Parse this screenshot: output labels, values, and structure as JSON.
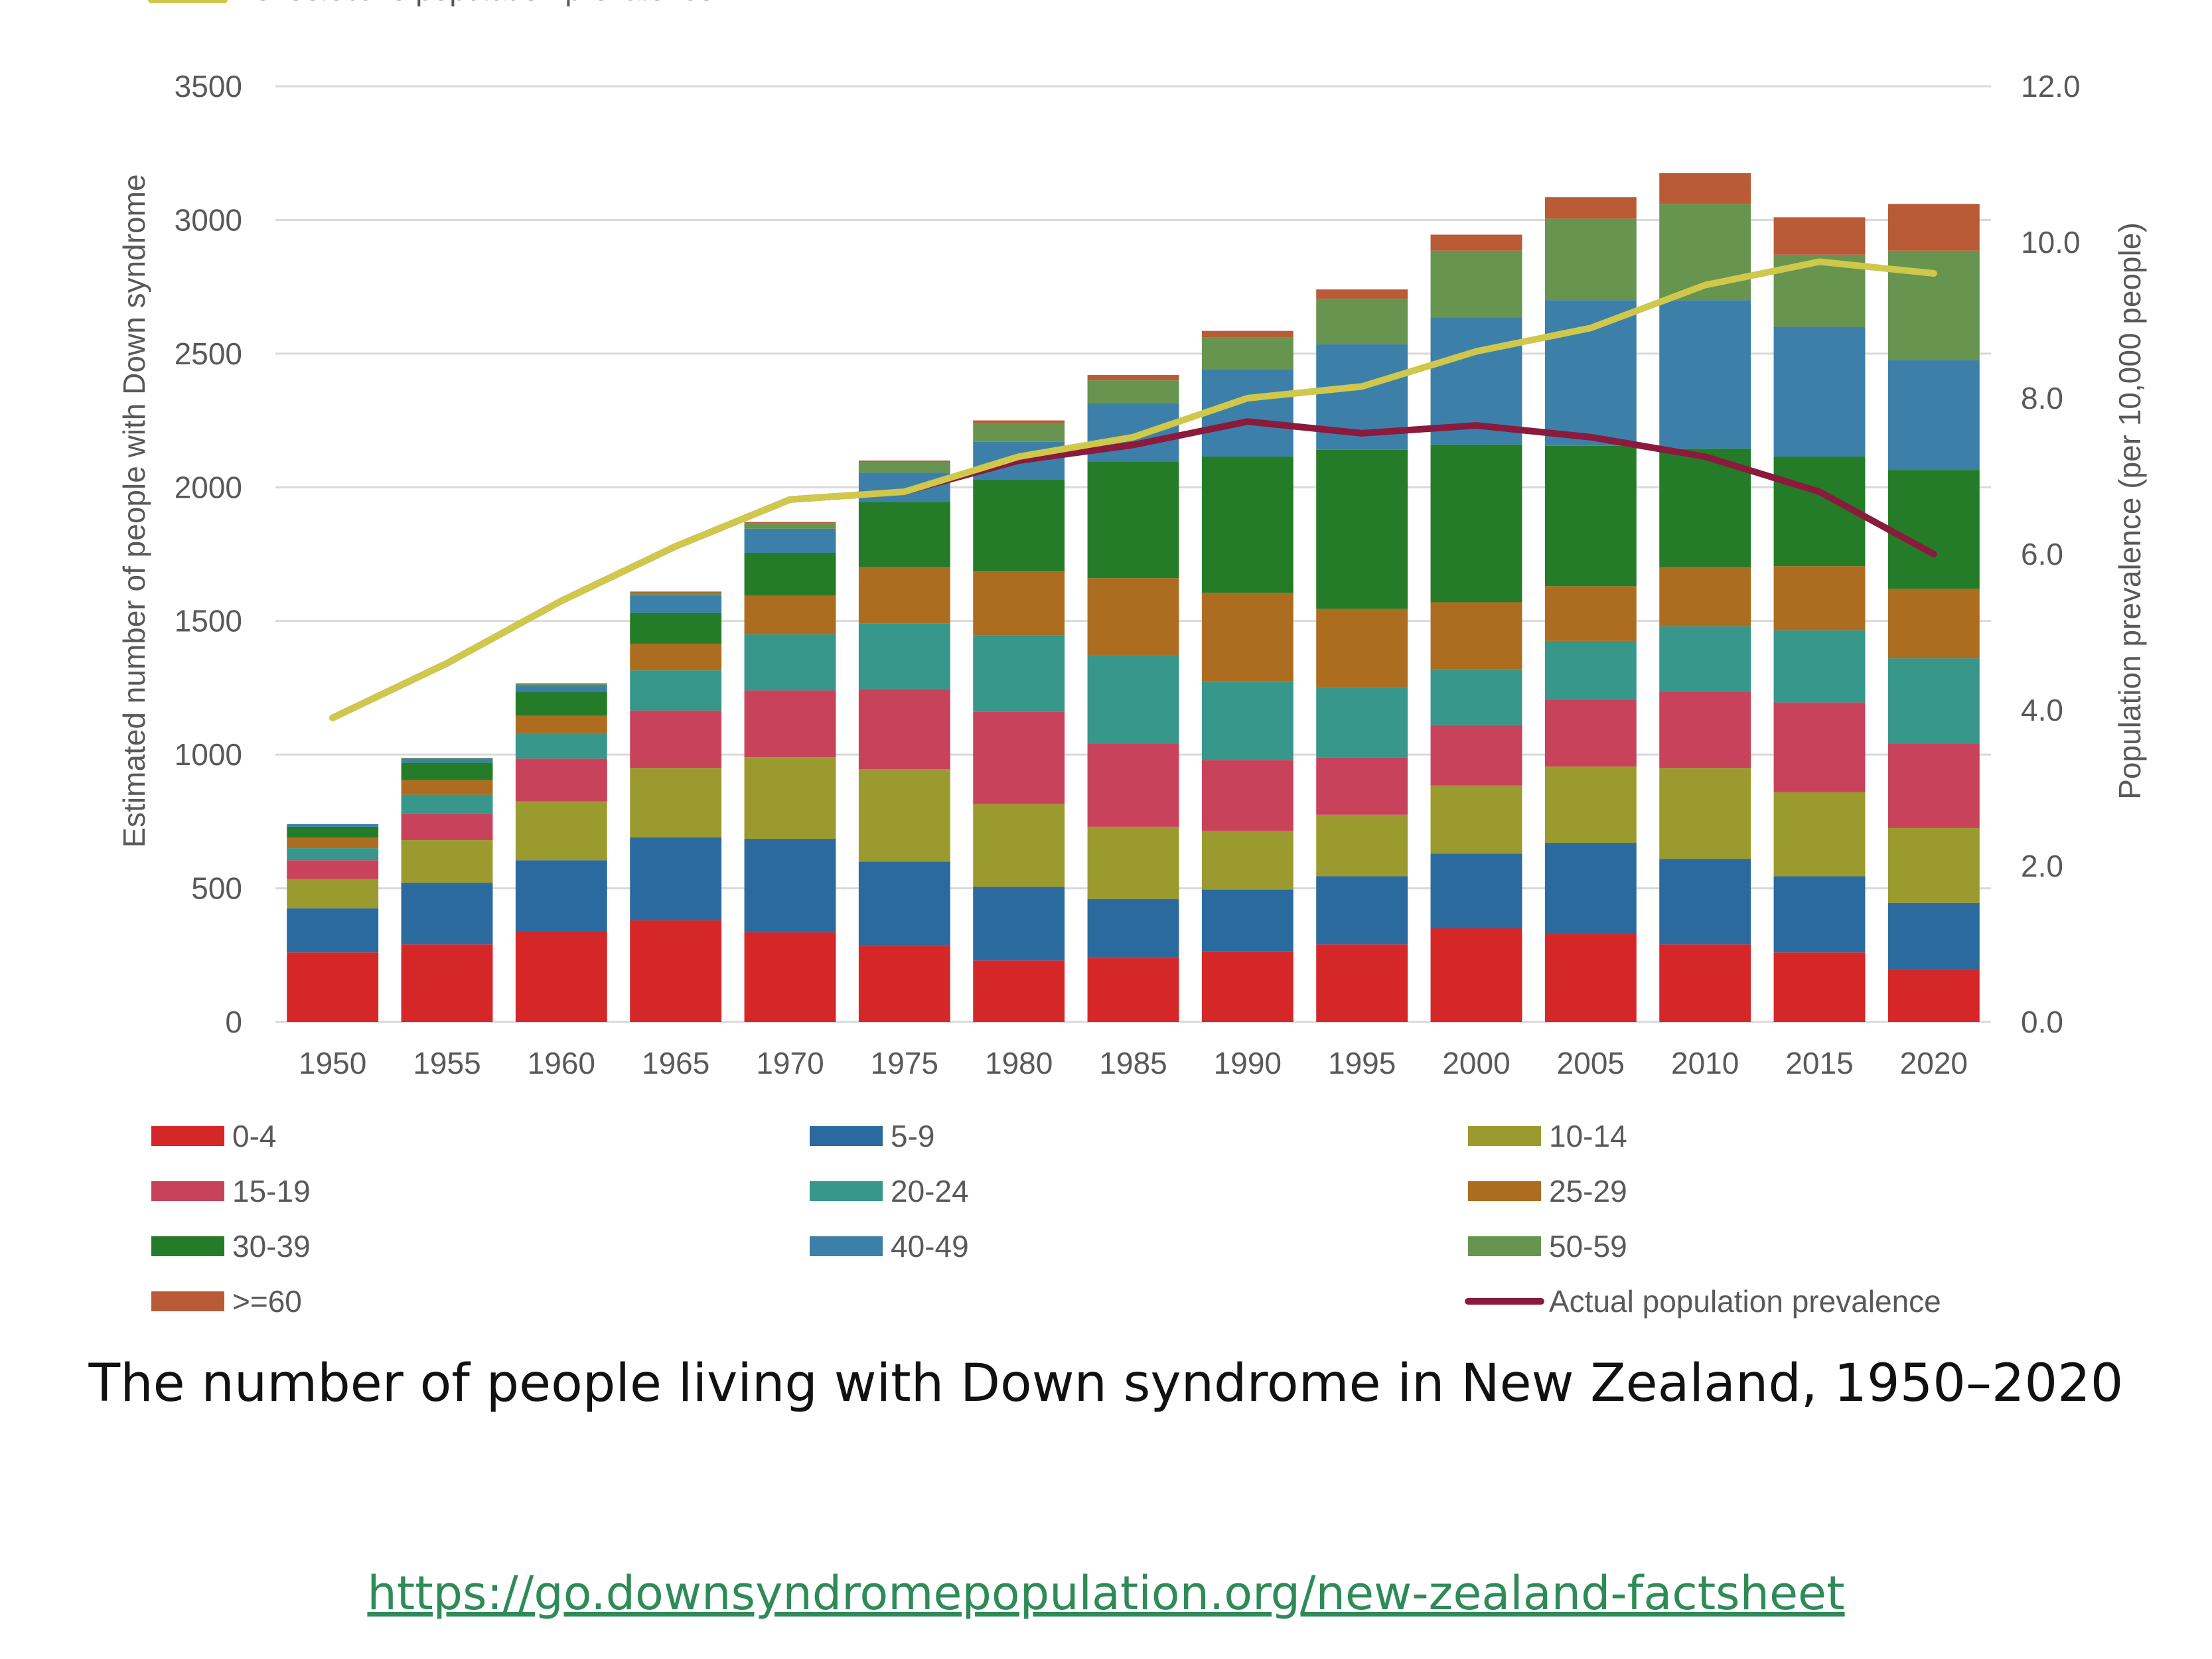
{
  "caption": "The number of people living with Down syndrome in New Zealand, 1950–2020",
  "link": "https://go.downsyndromepopulation.org/new-zealand-factsheet",
  "chart_data": {
    "type": "bar",
    "stacked": true,
    "title": "The number of people living with Down syndrome in New Zealand, 1950–2020",
    "categories": [
      "1950",
      "1955",
      "1960",
      "1965",
      "1970",
      "1975",
      "1980",
      "1985",
      "1990",
      "1995",
      "2000",
      "2005",
      "2010",
      "2015",
      "2020"
    ],
    "ylabel": "Estimated number of people with Down syndrome",
    "y2label": "Population prevalence (per 10,000 people)",
    "ylim": [
      0,
      3500
    ],
    "y2lim": [
      0,
      12
    ],
    "yticks": [
      "0",
      "500",
      "1000",
      "1500",
      "2000",
      "2500",
      "3000",
      "3500"
    ],
    "y2ticks": [
      "0.0",
      "2.0",
      "4.0",
      "6.0",
      "8.0",
      "10.0",
      "12.0"
    ],
    "grid": true,
    "legend_position": "bottom",
    "series": [
      {
        "name": "0-4",
        "color": "#d62728",
        "values": [
          260,
          290,
          340,
          380,
          335,
          285,
          230,
          240,
          265,
          290,
          350,
          330,
          290,
          260,
          195
        ]
      },
      {
        "name": "5-9",
        "color": "#2b6a9e",
        "values": [
          165,
          230,
          265,
          310,
          350,
          315,
          275,
          220,
          230,
          255,
          280,
          340,
          320,
          285,
          250
        ]
      },
      {
        "name": "10-14",
        "color": "#9a9a2e",
        "values": [
          110,
          160,
          220,
          260,
          305,
          345,
          310,
          270,
          220,
          230,
          255,
          285,
          340,
          315,
          280
        ]
      },
      {
        "name": "15-19",
        "color": "#c9425c",
        "values": [
          70,
          100,
          160,
          215,
          250,
          300,
          345,
          310,
          265,
          215,
          225,
          250,
          285,
          335,
          315
        ]
      },
      {
        "name": "20-24",
        "color": "#36978a",
        "values": [
          45,
          70,
          95,
          150,
          210,
          245,
          285,
          330,
          295,
          260,
          210,
          220,
          245,
          270,
          320
        ]
      },
      {
        "name": "25-29",
        "color": "#ad6d20",
        "values": [
          40,
          55,
          65,
          100,
          145,
          210,
          240,
          290,
          330,
          295,
          250,
          205,
          220,
          240,
          260
        ]
      },
      {
        "name": "30-39",
        "color": "#257c28",
        "values": [
          40,
          65,
          90,
          115,
          160,
          245,
          345,
          435,
          510,
          595,
          590,
          525,
          445,
          410,
          445
        ]
      },
      {
        "name": "40-49",
        "color": "#3c80aa",
        "values": [
          10,
          15,
          25,
          65,
          90,
          110,
          140,
          220,
          325,
          395,
          475,
          545,
          555,
          485,
          410
        ]
      },
      {
        "name": "50-59",
        "color": "#67944e",
        "values": [
          0,
          3,
          5,
          10,
          20,
          40,
          70,
          85,
          120,
          170,
          250,
          305,
          360,
          270,
          410
        ]
      },
      {
        "name": ">=60",
        "color": "#b85b36",
        "values": [
          0,
          0,
          2,
          5,
          5,
          5,
          10,
          20,
          25,
          35,
          60,
          80,
          115,
          140,
          175
        ]
      }
    ],
    "line_series": [
      {
        "name": "Actual population prevalence",
        "color": "#8b1a3c",
        "axis": "right",
        "values": [
          3.9,
          4.6,
          5.4,
          6.1,
          6.7,
          6.8,
          7.2,
          7.4,
          7.7,
          7.55,
          7.65,
          7.5,
          7.25,
          6.8,
          6.0
        ]
      },
      {
        "name": "Nonselective population prevalence",
        "color": "#cfc84a",
        "axis": "right",
        "values": [
          3.9,
          4.6,
          5.4,
          6.1,
          6.7,
          6.8,
          7.25,
          7.5,
          8.0,
          8.15,
          8.6,
          8.9,
          9.45,
          9.75,
          9.6
        ]
      }
    ]
  }
}
